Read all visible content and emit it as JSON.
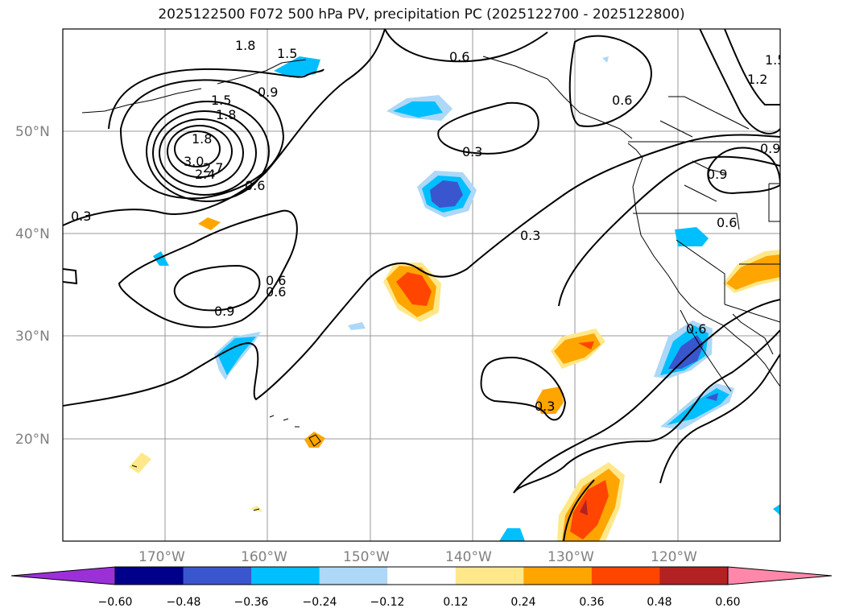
{
  "title": "2025122500 F072 500 hPa PV, precipitation PC (2025122700 - 2025122800)",
  "lat_labels": [
    "50°N",
    "40°N",
    "30°N",
    "20°N"
  ],
  "lon_labels": [
    "170°W",
    "160°W",
    "150°W",
    "140°W",
    "130°W",
    "120°W"
  ],
  "contour_labels": [
    "1.8",
    "1.5",
    "1.8",
    "0.9",
    "0.6",
    "1.5",
    "1.8",
    "3.0",
    "2.7",
    "2.4",
    "0.6",
    "0.3",
    "0.3",
    "0.6",
    "0.9",
    "0.6",
    "0.3",
    "0.6",
    "0.9",
    "0.6",
    "1.2",
    "1.5",
    "0.9",
    "0.6",
    "0.3"
  ],
  "colorbar": {
    "ticks": [
      "−0.60",
      "−0.48",
      "−0.36",
      "−0.24",
      "−0.12",
      "0.12",
      "0.24",
      "0.36",
      "0.48",
      "0.60"
    ],
    "colors": [
      "#9b30d9",
      "#00008b",
      "#3a56cf",
      "#00bfff",
      "#add8f7",
      "#ffffff",
      "#ffe88a",
      "#ffa500",
      "#ff4500",
      "#b22222",
      "#ff88aa"
    ]
  }
}
